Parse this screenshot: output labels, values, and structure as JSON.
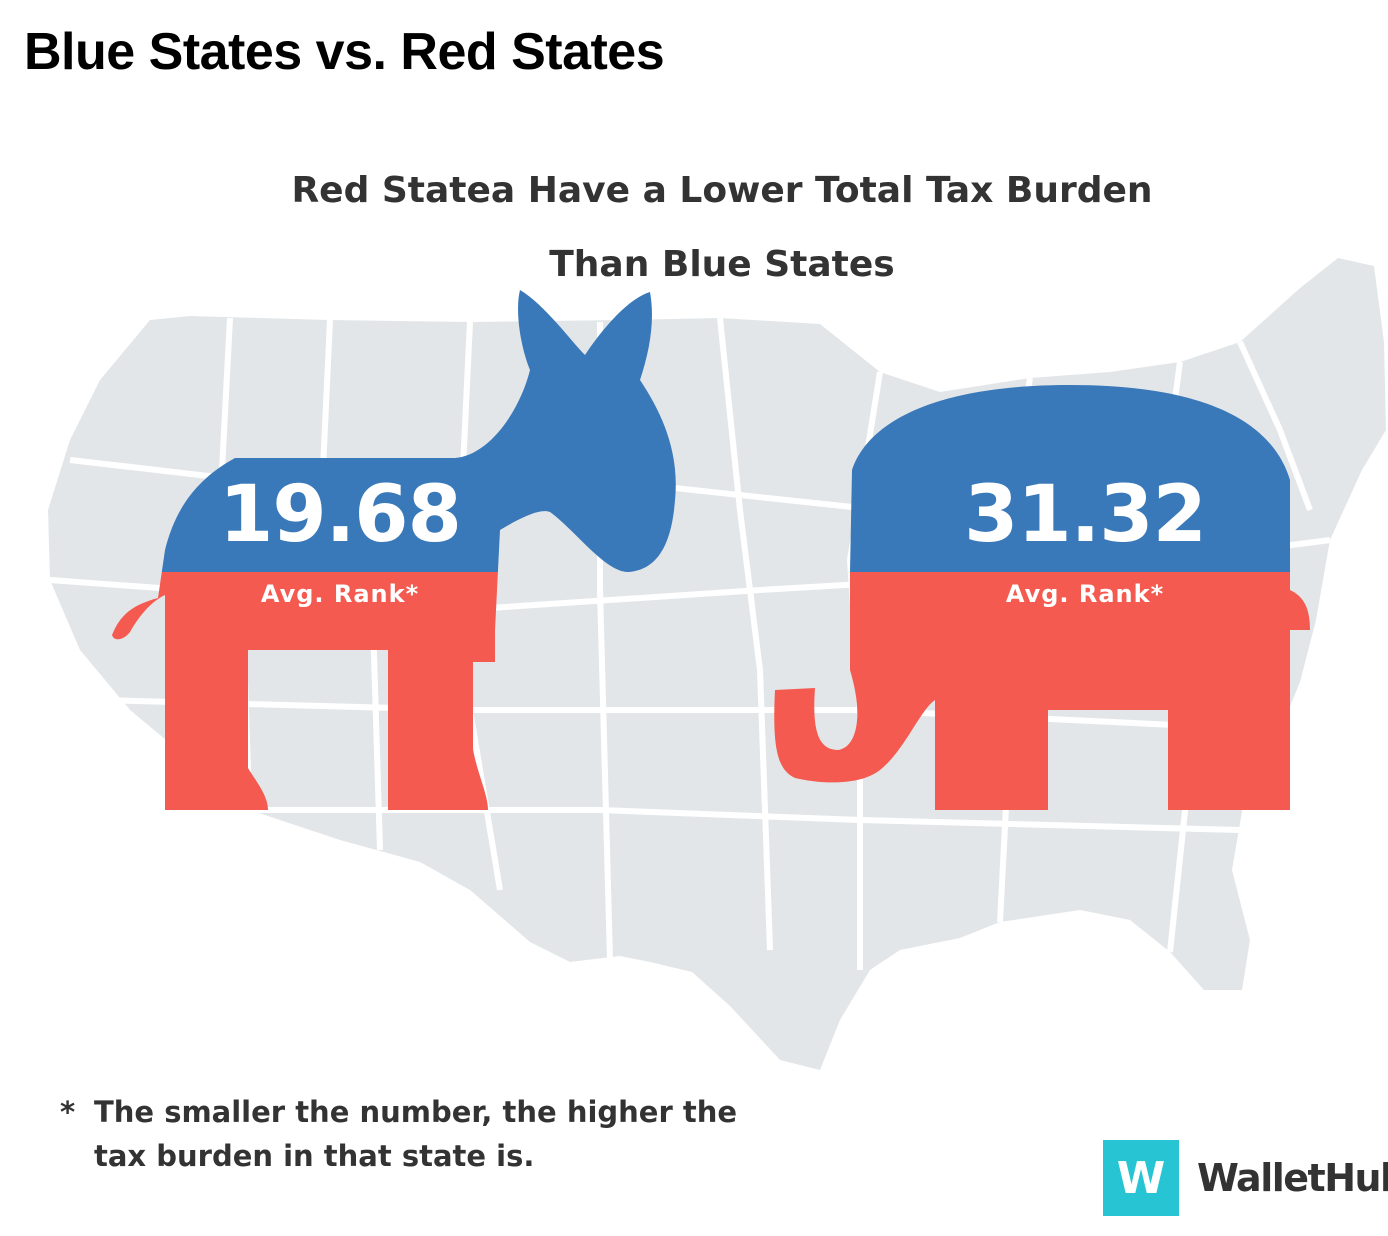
{
  "page": {
    "title": "Blue States vs. Red States"
  },
  "infographic": {
    "subtitle_line1": "Red Statea Have a Lower Total Tax Burden",
    "subtitle_line2": "Than Blue States",
    "blue_states": {
      "value": "19.68",
      "label": "Avg. Rank*",
      "mascot_icon": "donkey-icon"
    },
    "red_states": {
      "value": "31.32",
      "label": "Avg. Rank*",
      "mascot_icon": "elephant-icon"
    },
    "footnote": {
      "marker": "*",
      "text": "The smaller the number, the higher the tax burden in that state is."
    },
    "brand": {
      "mark": "W",
      "name": "WalletHub"
    }
  },
  "colors": {
    "blue": "#3978b9",
    "red": "#f45a4f",
    "map": "#e3e6e8",
    "state_lines": "#ffffff",
    "brand_teal": "#27c5d3"
  }
}
